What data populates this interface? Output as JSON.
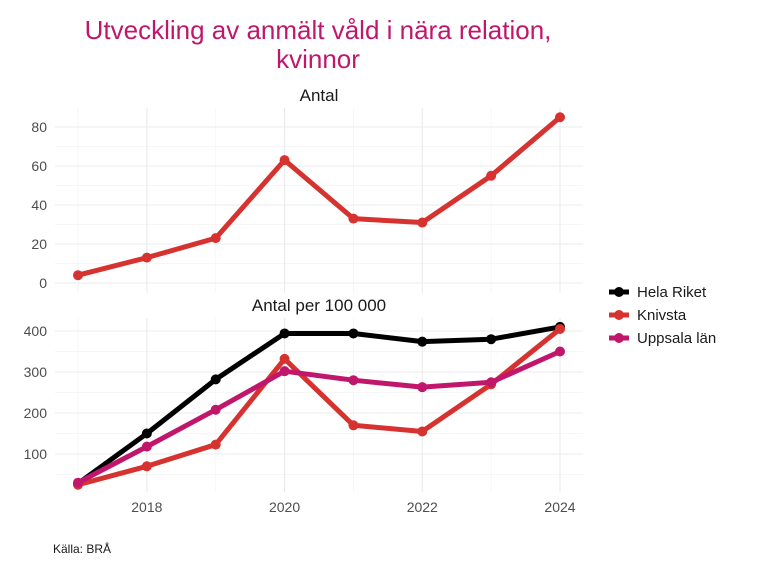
{
  "chart_data": {
    "type": "line",
    "title_lines": [
      "Utveckling av anmält våld i nära relation,",
      "kvinnor"
    ],
    "caption": "Källa: BRÅ",
    "x": [
      2017,
      2018,
      2019,
      2020,
      2021,
      2022,
      2023,
      2024
    ],
    "x_ticks": [
      2018,
      2020,
      2022,
      2024
    ],
    "legend": {
      "position": "right",
      "entries": [
        {
          "name": "Hela Riket",
          "color": "#000000"
        },
        {
          "name": "Knivsta",
          "color": "#d63230"
        },
        {
          "name": "Uppsala län",
          "color": "#c0176c"
        }
      ]
    },
    "panels": [
      {
        "title": "Antal",
        "ylim": [
          0,
          85
        ],
        "y_ticks": [
          0,
          20,
          40,
          60,
          80
        ],
        "series": [
          {
            "name": "Knivsta",
            "color": "#d63230",
            "values": [
              4,
              13,
              23,
              63,
              33,
              31,
              55,
              85
            ]
          }
        ]
      },
      {
        "title": "Antal per 100 000",
        "ylim": [
          25,
          410
        ],
        "y_ticks": [
          100,
          200,
          300,
          400
        ],
        "series": [
          {
            "name": "Hela Riket",
            "color": "#000000",
            "values": [
              28,
              150,
              282,
              394,
              394,
              374,
              380,
              410
            ]
          },
          {
            "name": "Knivsta",
            "color": "#d63230",
            "values": [
              25,
              70,
              123,
              332,
              170,
              155,
              270,
              405
            ]
          },
          {
            "name": "Uppsala län",
            "color": "#c0176c",
            "values": [
              30,
              118,
              208,
              302,
              280,
              263,
              275,
              350
            ]
          }
        ]
      }
    ],
    "grid": true
  }
}
